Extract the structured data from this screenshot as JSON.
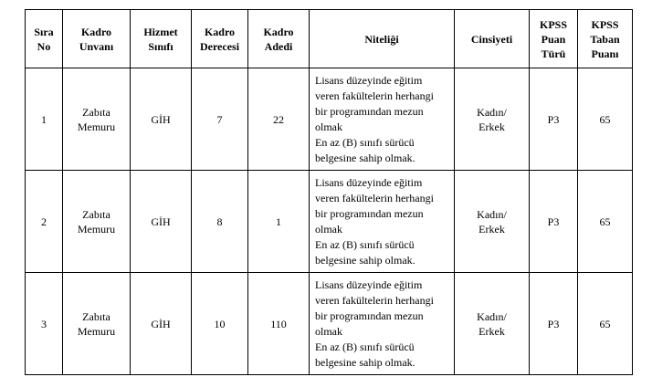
{
  "table": {
    "columns": [
      {
        "key": "sira_no",
        "label": "Sıra\nNo"
      },
      {
        "key": "kadro_unvani",
        "label": "Kadro\nUnvanı"
      },
      {
        "key": "hizmet_sinifi",
        "label": "Hizmet\nSınıfı"
      },
      {
        "key": "kadro_derecesi",
        "label": "Kadro\nDerecesi"
      },
      {
        "key": "kadro_adedi",
        "label": "Kadro\nAdedi"
      },
      {
        "key": "niteligi",
        "label": "Niteliği"
      },
      {
        "key": "cinsiyeti",
        "label": "Cinsiyeti"
      },
      {
        "key": "kpss_puan_turu",
        "label": "KPSS\nPuan\nTürü"
      },
      {
        "key": "kpss_taban_puani",
        "label": "KPSS\nTaban\nPuanı"
      }
    ],
    "rows": [
      {
        "sira_no": "1",
        "kadro_unvani": "Zabıta\nMemuru",
        "hizmet_sinifi": "GİH",
        "kadro_derecesi": "7",
        "kadro_adedi": "22",
        "niteligi": "Lisans düzeyinde eğitim\nveren fakültelerin herhangi\nbir programından mezun\nolmak\nEn az (B) sınıfı sürücü\nbelgesine sahip olmak.",
        "cinsiyeti": "Kadın/\nErkek",
        "kpss_puan_turu": "P3",
        "kpss_taban_puani": "65"
      },
      {
        "sira_no": "2",
        "kadro_unvani": "Zabıta\nMemuru",
        "hizmet_sinifi": "GİH",
        "kadro_derecesi": "8",
        "kadro_adedi": "1",
        "niteligi": "Lisans düzeyinde eğitim\nveren fakültelerin herhangi\nbir programından mezun\nolmak\nEn az (B) sınıfı sürücü\nbelgesine sahip olmak.",
        "cinsiyeti": "Kadın/\nErkek",
        "kpss_puan_turu": "P3",
        "kpss_taban_puani": "65"
      },
      {
        "sira_no": "3",
        "kadro_unvani": "Zabıta\nMemuru",
        "hizmet_sinifi": "GİH",
        "kadro_derecesi": "10",
        "kadro_adedi": "110",
        "niteligi": "Lisans düzeyinde eğitim\nveren fakültelerin herhangi\nbir programından mezun\nolmak\nEn az (B) sınıfı sürücü\nbelgesine sahip olmak.",
        "cinsiyeti": "Kadın/\nErkek",
        "kpss_puan_turu": "P3",
        "kpss_taban_puani": "65"
      }
    ]
  },
  "colors": {
    "border": "#000000",
    "text": "#000000",
    "background": "#ffffff"
  }
}
